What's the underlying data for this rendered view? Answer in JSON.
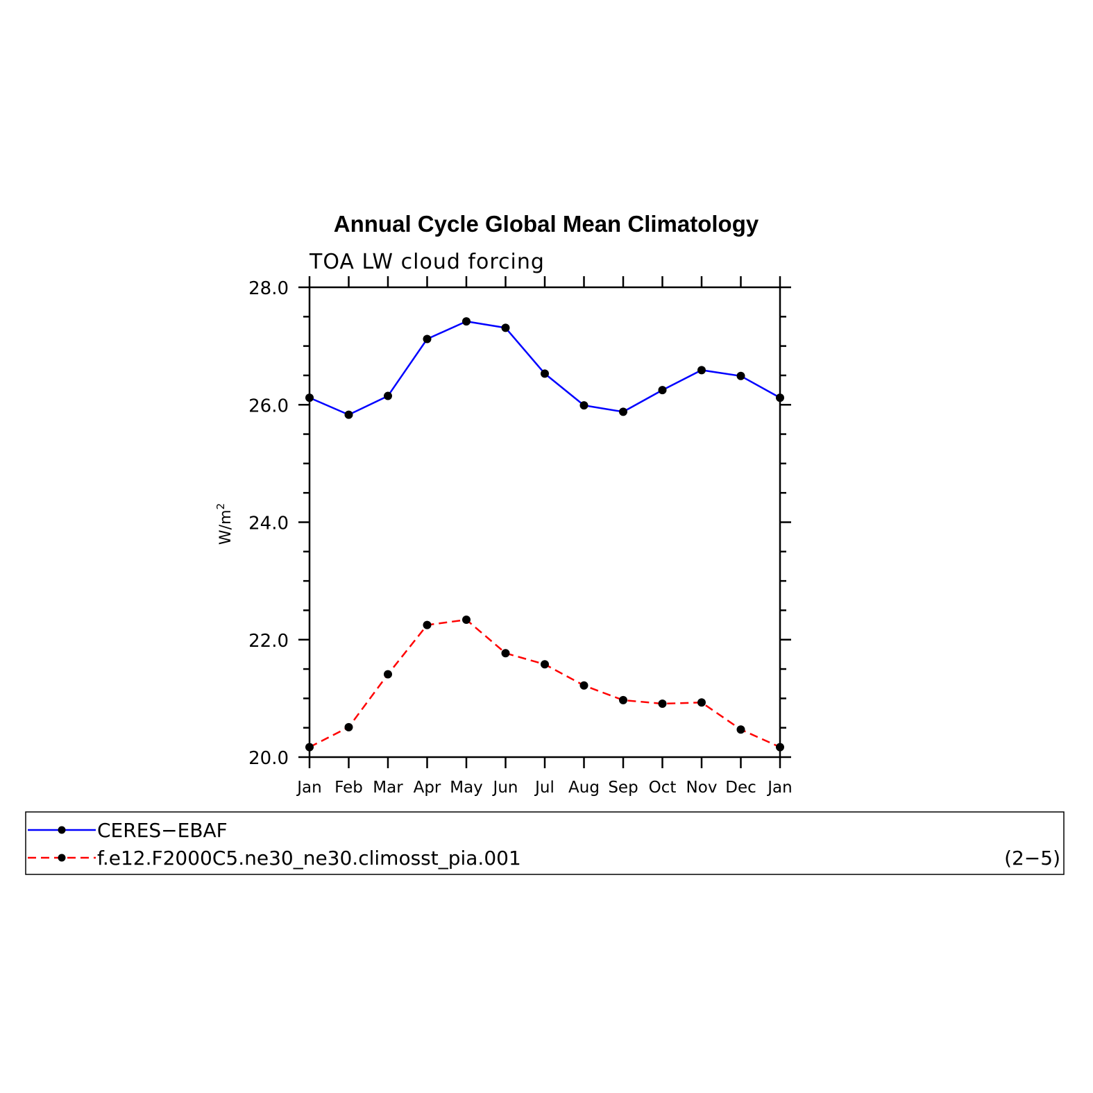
{
  "chart_data": {
    "type": "line",
    "title": "Annual Cycle Global Mean Climatology",
    "subtitle": "TOA LW cloud forcing",
    "ylabel": "W/m",
    "ylabel_superscript": "2",
    "categories": [
      "Jan",
      "Feb",
      "Mar",
      "Apr",
      "May",
      "Jun",
      "Jul",
      "Aug",
      "Sep",
      "Oct",
      "Nov",
      "Dec",
      "Jan"
    ],
    "ylim": [
      20.0,
      28.0
    ],
    "yticks": [
      "20.0",
      "22.0",
      "24.0",
      "26.0",
      "28.0"
    ],
    "grid": false,
    "series": [
      {
        "name": "CERES−EBAF",
        "color": "#0000ff",
        "dash": "solid",
        "marker": "filled-circle",
        "values": [
          26.12,
          25.83,
          26.15,
          27.12,
          27.42,
          27.31,
          26.53,
          25.99,
          25.88,
          26.25,
          26.59,
          26.49,
          26.12
        ]
      },
      {
        "name": "f.e12.F2000C5.ne30_ne30.climosst_pia.001",
        "color": "#ff0000",
        "dash": "dashed",
        "marker": "filled-circle",
        "values": [
          20.17,
          20.51,
          21.41,
          22.25,
          22.34,
          21.77,
          21.58,
          21.22,
          20.97,
          20.91,
          20.93,
          20.47,
          20.17
        ]
      }
    ],
    "legend_position": "bottom",
    "panel_label": "(2−5)"
  }
}
